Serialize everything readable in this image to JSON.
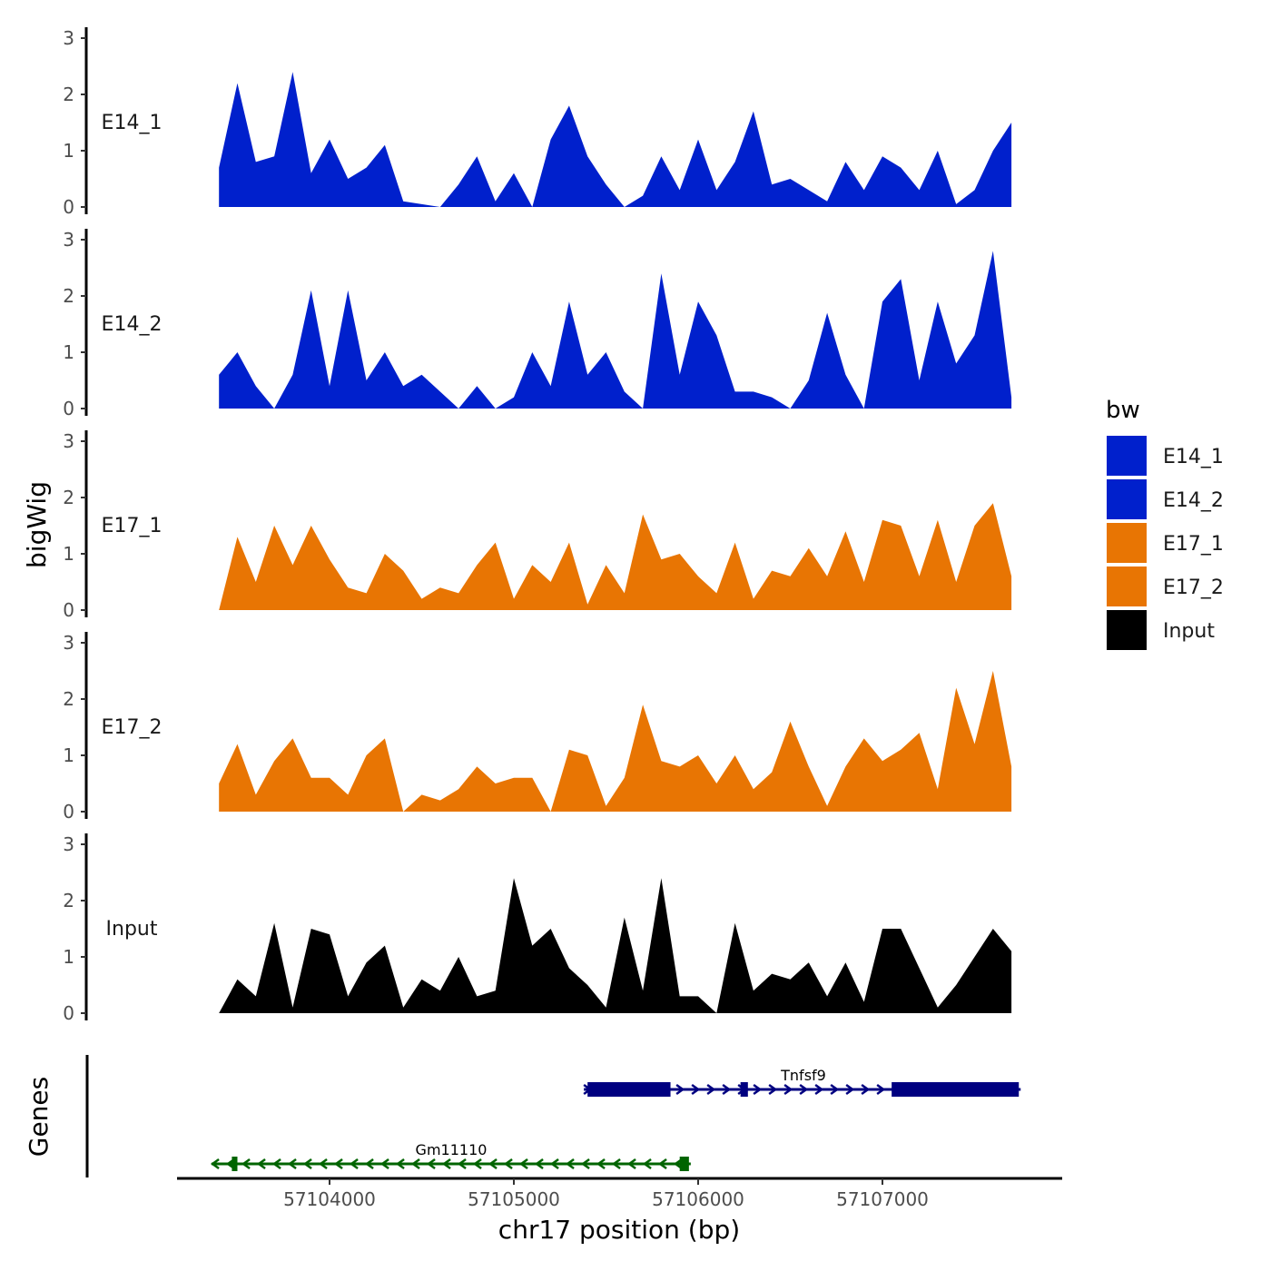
{
  "chart_data": {
    "type": "area",
    "xlabel": "chr17 position (bp)",
    "ylabel": "bigWig",
    "genes_label": "Genes",
    "xlim": [
      57103200,
      57107950
    ],
    "xticks": [
      57104000,
      57105000,
      57106000,
      57107000
    ],
    "xtick_labels": [
      "57104000",
      "57105000",
      "57106000",
      "57107000"
    ],
    "ylim": [
      0,
      3
    ],
    "yticks": [
      0,
      1,
      2,
      3
    ],
    "ytick_labels": [
      "0",
      "1",
      "2",
      "3"
    ],
    "legend": {
      "title": "bw",
      "entries": [
        {
          "name": "E14_1",
          "color": "#0020CC"
        },
        {
          "name": "E14_2",
          "color": "#0020CC"
        },
        {
          "name": "E17_1",
          "color": "#E87503"
        },
        {
          "name": "E17_2",
          "color": "#E87503"
        },
        {
          "name": "Input",
          "color": "#000000"
        }
      ]
    },
    "x": [
      57103400,
      57103500,
      57103600,
      57103700,
      57103800,
      57103900,
      57104000,
      57104100,
      57104200,
      57104300,
      57104400,
      57104500,
      57104600,
      57104700,
      57104800,
      57104900,
      57105000,
      57105100,
      57105200,
      57105300,
      57105400,
      57105500,
      57105600,
      57105700,
      57105800,
      57105900,
      57106000,
      57106100,
      57106200,
      57106300,
      57106400,
      57106500,
      57106600,
      57106700,
      57106800,
      57106900,
      57107000,
      57107100,
      57107200,
      57107300,
      57107400,
      57107500,
      57107600,
      57107700
    ],
    "series": [
      {
        "name": "E14_1",
        "color": "#0020CC",
        "values": [
          0.7,
          2.2,
          0.8,
          0.9,
          2.4,
          0.6,
          1.2,
          0.5,
          0.7,
          1.1,
          0.1,
          0.05,
          0,
          0.4,
          0.9,
          0.1,
          0.6,
          0,
          1.2,
          1.8,
          0.9,
          0.4,
          0,
          0.2,
          0.9,
          0.3,
          1.2,
          0.3,
          0.8,
          1.7,
          0.4,
          0.5,
          0.3,
          0.1,
          0.8,
          0.3,
          0.9,
          0.7,
          0.3,
          1.0,
          0.05,
          0.3,
          1.0,
          1.5
        ]
      },
      {
        "name": "E14_2",
        "color": "#0020CC",
        "values": [
          0.6,
          1.0,
          0.4,
          0,
          0.6,
          2.1,
          0.4,
          2.1,
          0.5,
          1.0,
          0.4,
          0.6,
          0.3,
          0,
          0.4,
          0,
          0.2,
          1.0,
          0.4,
          1.9,
          0.6,
          1.0,
          0.3,
          0,
          2.4,
          0.6,
          1.9,
          1.3,
          0.3,
          0.3,
          0.2,
          0,
          0.5,
          1.7,
          0.6,
          0,
          1.9,
          2.3,
          0.5,
          1.9,
          0.8,
          1.3,
          2.8,
          0.2
        ]
      },
      {
        "name": "E17_1",
        "color": "#E87503",
        "values": [
          0,
          1.3,
          0.5,
          1.5,
          0.8,
          1.5,
          0.9,
          0.4,
          0.3,
          1.0,
          0.7,
          0.2,
          0.4,
          0.3,
          0.8,
          1.2,
          0.2,
          0.8,
          0.5,
          1.2,
          0.1,
          0.8,
          0.3,
          1.7,
          0.9,
          1.0,
          0.6,
          0.3,
          1.2,
          0.2,
          0.7,
          0.6,
          1.1,
          0.6,
          1.4,
          0.5,
          1.6,
          1.5,
          0.6,
          1.6,
          0.5,
          1.5,
          1.9,
          0.6
        ]
      },
      {
        "name": "E17_2",
        "color": "#E87503",
        "values": [
          0.5,
          1.2,
          0.3,
          0.9,
          1.3,
          0.6,
          0.6,
          0.3,
          1.0,
          1.3,
          0,
          0.3,
          0.2,
          0.4,
          0.8,
          0.5,
          0.6,
          0.6,
          0,
          1.1,
          1.0,
          0.1,
          0.6,
          1.9,
          0.9,
          0.8,
          1.0,
          0.5,
          1.0,
          0.4,
          0.7,
          1.6,
          0.8,
          0.1,
          0.8,
          1.3,
          0.9,
          1.1,
          1.4,
          0.4,
          2.2,
          1.2,
          2.5,
          0.8
        ]
      },
      {
        "name": "Input",
        "color": "#000000",
        "values": [
          0,
          0.6,
          0.3,
          1.6,
          0.1,
          1.5,
          1.4,
          0.3,
          0.9,
          1.2,
          0.1,
          0.6,
          0.4,
          1.0,
          0.3,
          0.4,
          2.4,
          1.2,
          1.5,
          0.8,
          0.5,
          0.1,
          1.7,
          0.4,
          2.4,
          0.3,
          0.3,
          0,
          1.6,
          0.4,
          0.7,
          0.6,
          0.9,
          0.3,
          0.9,
          0.2,
          1.5,
          1.5,
          0.8,
          0.1,
          0.5,
          1.0,
          1.5,
          1.1
        ]
      }
    ],
    "genes": [
      {
        "name": "Tnfsf9",
        "strand": "+",
        "start": 57105380,
        "end": 57107750,
        "color": "#000080",
        "exons": [
          [
            57105400,
            57105850
          ],
          [
            57106230,
            57106270
          ],
          [
            57107050,
            57107740
          ]
        ]
      },
      {
        "name": "Gm11110",
        "strand": "-",
        "start": 57103360,
        "end": 57105960,
        "color": "#006400",
        "exons": [
          [
            57103470,
            57103500
          ],
          [
            57105900,
            57105950
          ]
        ]
      }
    ]
  }
}
